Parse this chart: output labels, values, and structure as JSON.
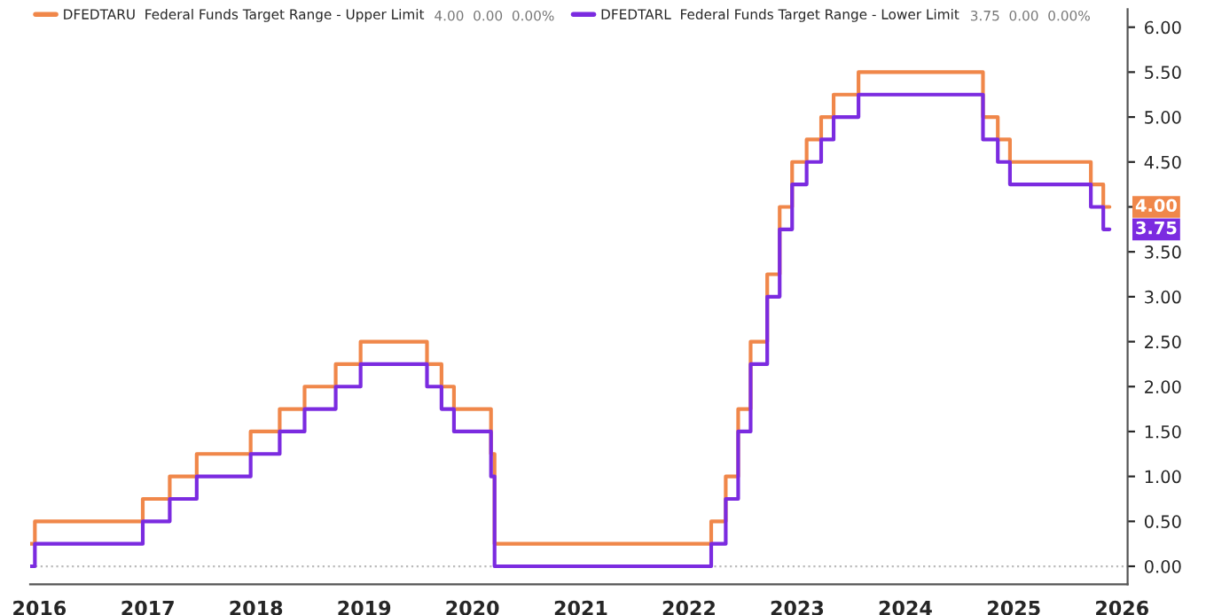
{
  "chart_data": {
    "type": "step",
    "series": [
      {
        "name": "DFEDTARU  Federal Funds Target Range - Upper Limit",
        "color": "#f0874a",
        "x": [
          "2015-12-01",
          "2015-12-17",
          "2016-12-15",
          "2017-03-16",
          "2017-06-15",
          "2017-12-14",
          "2018-03-22",
          "2018-06-14",
          "2018-09-27",
          "2018-12-20",
          "2019-08-01",
          "2019-09-19",
          "2019-10-31",
          "2020-03-04",
          "2020-03-16",
          "2022-03-17",
          "2022-05-05",
          "2022-06-16",
          "2022-07-28",
          "2022-09-22",
          "2022-11-03",
          "2022-12-15",
          "2023-02-02",
          "2023-03-23",
          "2023-05-04",
          "2023-07-27",
          "2024-09-19",
          "2024-11-08",
          "2024-12-19",
          "2025-09-18",
          "2025-10-30",
          "2025-11-20"
        ],
        "values": [
          0.25,
          0.5,
          0.75,
          1.0,
          1.25,
          1.5,
          1.75,
          2.0,
          2.25,
          2.5,
          2.25,
          2.0,
          1.75,
          1.25,
          0.25,
          0.5,
          1.0,
          1.75,
          2.5,
          3.25,
          4.0,
          4.5,
          4.75,
          5.0,
          5.25,
          5.5,
          5.0,
          4.75,
          4.5,
          4.25,
          4.0,
          4.0
        ],
        "value_labels": [
          null,
          null,
          null,
          null,
          null,
          null,
          null,
          null,
          null,
          null,
          null,
          null,
          null,
          null,
          null,
          null,
          null,
          null,
          null,
          null,
          null,
          null,
          null,
          null,
          null,
          null,
          null,
          null,
          null,
          null,
          null,
          "4.00"
        ]
      },
      {
        "name": "DFEDTARL  Federal Funds Target Range - Lower Limit",
        "color": "#7b2be0",
        "x": [
          "2015-12-01",
          "2015-12-17",
          "2016-12-15",
          "2017-03-16",
          "2017-06-15",
          "2017-12-14",
          "2018-03-22",
          "2018-06-14",
          "2018-09-27",
          "2018-12-20",
          "2019-08-01",
          "2019-09-19",
          "2019-10-31",
          "2020-03-04",
          "2020-03-16",
          "2022-03-17",
          "2022-05-05",
          "2022-06-16",
          "2022-07-28",
          "2022-09-22",
          "2022-11-03",
          "2022-12-15",
          "2023-02-02",
          "2023-03-23",
          "2023-05-04",
          "2023-07-27",
          "2024-09-19",
          "2024-11-08",
          "2024-12-19",
          "2025-09-18",
          "2025-10-30",
          "2025-11-20"
        ],
        "values": [
          0.0,
          0.25,
          0.5,
          0.75,
          1.0,
          1.25,
          1.5,
          1.75,
          2.0,
          2.25,
          2.0,
          1.75,
          1.5,
          1.0,
          0.0,
          0.25,
          0.75,
          1.5,
          2.25,
          3.0,
          3.75,
          4.25,
          4.5,
          4.75,
          5.0,
          5.25,
          4.75,
          4.5,
          4.25,
          4.0,
          3.75,
          3.75
        ],
        "value_labels": [
          null,
          null,
          null,
          null,
          null,
          null,
          null,
          null,
          null,
          null,
          null,
          null,
          null,
          null,
          null,
          null,
          null,
          null,
          null,
          null,
          null,
          null,
          null,
          null,
          null,
          null,
          null,
          null,
          null,
          null,
          null,
          "3.75"
        ]
      }
    ],
    "annotations": [
      "4.00  0.00  0.00%",
      "3.75  0.00  0.00%"
    ],
    "xlim": [
      "2015-12-01",
      "2026-01-20"
    ],
    "xticks": [
      {
        "value": "2016-01-01",
        "label": "2016"
      },
      {
        "value": "2017-01-01",
        "label": "2017"
      },
      {
        "value": "2018-01-01",
        "label": "2018"
      },
      {
        "value": "2019-01-01",
        "label": "2019"
      },
      {
        "value": "2020-01-01",
        "label": "2020"
      },
      {
        "value": "2021-01-01",
        "label": "2021"
      },
      {
        "value": "2022-01-01",
        "label": "2022"
      },
      {
        "value": "2023-01-01",
        "label": "2023"
      },
      {
        "value": "2024-01-01",
        "label": "2024"
      },
      {
        "value": "2025-01-01",
        "label": "2025"
      },
      {
        "value": "2026-01-01",
        "label": "2026"
      }
    ],
    "ylim": [
      -0.2,
      6.2
    ],
    "yticks": [
      {
        "value": 0,
        "label": "0.00"
      },
      {
        "value": 0.5,
        "label": "0.50"
      },
      {
        "value": 1,
        "label": "1.00"
      },
      {
        "value": 1.5,
        "label": "1.50"
      },
      {
        "value": 2,
        "label": "2.00"
      },
      {
        "value": 2.5,
        "label": "2.50"
      },
      {
        "value": 3,
        "label": "3.00"
      },
      {
        "value": 3.5,
        "label": "3.50"
      },
      {
        "value": 4,
        "label": null
      },
      {
        "value": 4.5,
        "label": "4.50"
      },
      {
        "value": 5,
        "label": "5.00"
      },
      {
        "value": 5.5,
        "label": "5.50"
      },
      {
        "value": 6,
        "label": "6.00"
      }
    ],
    "ref_lines": [
      {
        "axis": "y",
        "value": 0,
        "color": "#bbbbbb",
        "line_style": "dotted"
      }
    ],
    "grid": false,
    "legend": "top left",
    "line_style": "solid"
  }
}
